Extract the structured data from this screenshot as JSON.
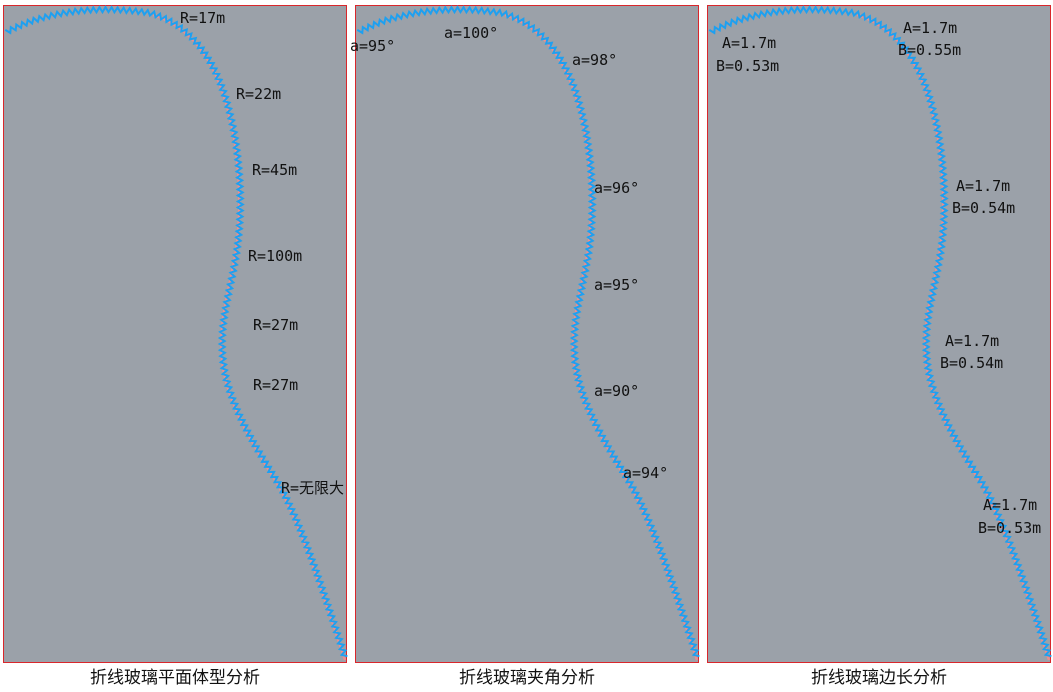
{
  "panels": [
    {
      "caption": "折线玻璃平面体型分析",
      "labels": [
        "R=17m",
        "R=22m",
        "R=45m",
        "R=100m",
        "R=27m",
        "R=27m",
        "R=无限大"
      ]
    },
    {
      "caption": "折线玻璃夹角分析",
      "labels": [
        "a=95°",
        "a=100°",
        "a=98°",
        "a=96°",
        "a=95°",
        "a=90°",
        "a=94°"
      ]
    },
    {
      "caption": "折线玻璃边长分析",
      "labels": [
        [
          "A=1.7m",
          "B=0.53m"
        ],
        [
          "A=1.7m",
          "B=0.55m"
        ],
        [
          "A=1.7m",
          "B=0.54m"
        ],
        [
          "A=1.7m",
          "B=0.54m"
        ],
        [
          "A=1.7m",
          "B=0.53m"
        ]
      ]
    }
  ]
}
